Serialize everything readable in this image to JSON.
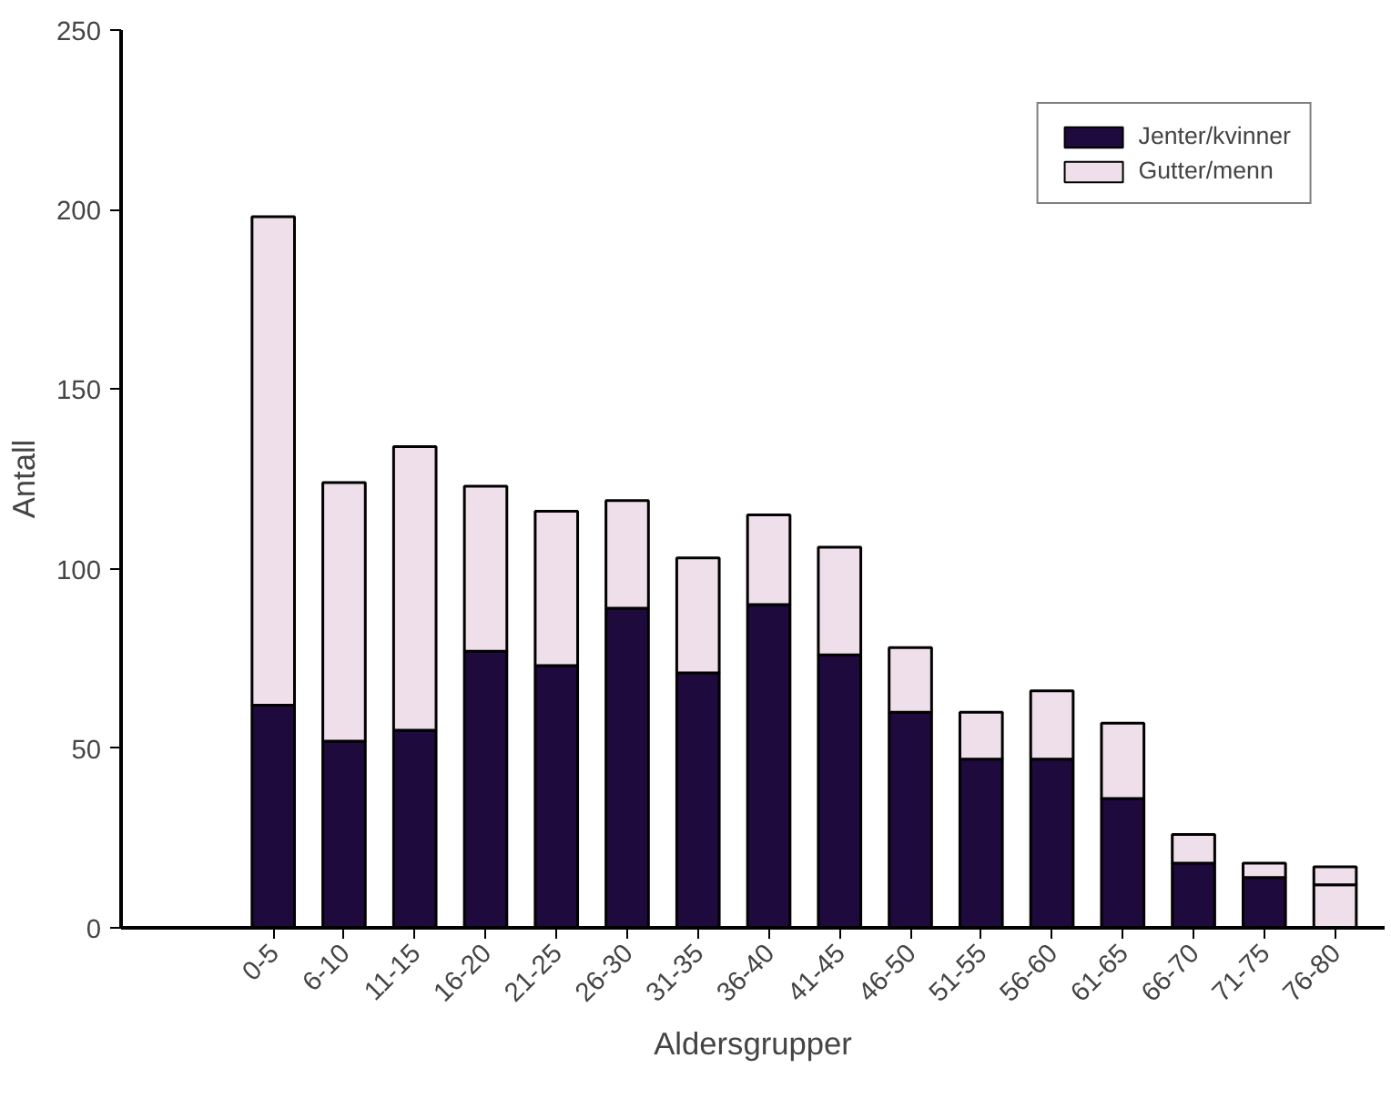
{
  "chart_data": {
    "type": "bar",
    "stacked": true,
    "xlabel": "Aldersgrupper",
    "ylabel": "Antall",
    "categories": [
      "0-5",
      "6-10",
      "11-15",
      "16-20",
      "21-25",
      "26-30",
      "31-35",
      "36-40",
      "41-45",
      "46-50",
      "51-55",
      "56-60",
      "61-65",
      "66-70",
      "71-75",
      "76-80"
    ],
    "series": [
      {
        "name": "Jenter/kvinner",
        "color": "#1e0a3c",
        "colors": [
          "#1e0a3c",
          "#1e0a3c",
          "#1e0a3c",
          "#1e0a3c",
          "#1e0a3c",
          "#1e0a3c",
          "#1e0a3c",
          "#1e0a3c",
          "#1e0a3c",
          "#1e0a3c",
          "#1e0a3c",
          "#1e0a3c",
          "#1e0a3c",
          "#1e0a3c",
          "#1e0a3c",
          "#eedfea"
        ],
        "values": [
          62,
          52,
          55,
          77,
          73,
          89,
          71,
          90,
          76,
          60,
          47,
          47,
          36,
          18,
          14,
          12
        ]
      },
      {
        "name": "Gutter/menn",
        "color": "#eedfea",
        "values": [
          136,
          72,
          79,
          46,
          43,
          30,
          32,
          25,
          30,
          18,
          13,
          19,
          21,
          8,
          4,
          5
        ]
      }
    ],
    "ylim": [
      0,
      250
    ],
    "yticks": [
      0,
      50,
      100,
      150,
      200,
      250
    ],
    "grid": false,
    "legend": "top right"
  }
}
